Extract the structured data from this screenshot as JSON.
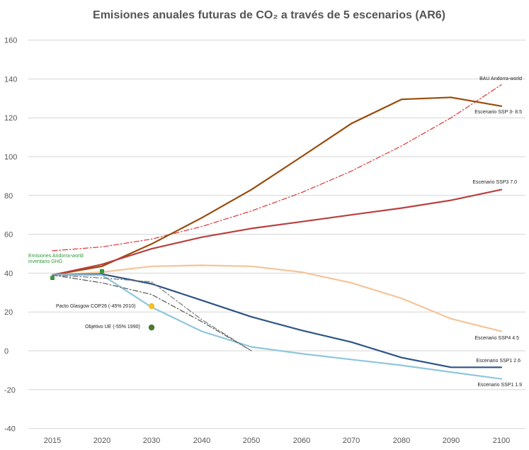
{
  "chart_data": {
    "type": "line",
    "title": "Emisiones anuales futuras de CO₂ a través de 5 escenarios (AR6)",
    "xlabel": "",
    "ylabel": "",
    "x": [
      2015,
      2020,
      2030,
      2040,
      2050,
      2060,
      2070,
      2080,
      2090,
      2100
    ],
    "xlim": [
      2015,
      2100
    ],
    "ylim": [
      -40,
      160
    ],
    "yticks": [
      -40,
      -20,
      0,
      20,
      40,
      60,
      80,
      100,
      120,
      140,
      160
    ],
    "grid": true,
    "series": [
      {
        "name": "BAU Andorra-world",
        "color": "#e03030",
        "style": "dashdot",
        "points": [
          [
            2015,
            51.5
          ],
          [
            2020,
            53.5
          ],
          [
            2030,
            57.5
          ],
          [
            2040,
            64
          ],
          [
            2050,
            72
          ],
          [
            2060,
            81.5
          ],
          [
            2070,
            92.5
          ],
          [
            2080,
            105.5
          ],
          [
            2090,
            120
          ],
          [
            2100,
            137
          ]
        ]
      },
      {
        "name": "Escenario SSP 3- 8.5",
        "color": "#9a4a0a",
        "style": "solid",
        "points": [
          [
            2015,
            39
          ],
          [
            2020,
            43.5
          ],
          [
            2030,
            55
          ],
          [
            2040,
            68.5
          ],
          [
            2050,
            83
          ],
          [
            2060,
            100
          ],
          [
            2070,
            117
          ],
          [
            2080,
            129.5
          ],
          [
            2090,
            130.5
          ],
          [
            2100,
            126
          ]
        ]
      },
      {
        "name": "Escenario SSP3 7.0",
        "color": "#b94040",
        "style": "solid",
        "points": [
          [
            2015,
            39
          ],
          [
            2020,
            44.5
          ],
          [
            2030,
            52.5
          ],
          [
            2040,
            58.5
          ],
          [
            2050,
            63
          ],
          [
            2060,
            66.5
          ],
          [
            2070,
            70
          ],
          [
            2080,
            73.5
          ],
          [
            2090,
            77.5
          ],
          [
            2100,
            83
          ]
        ]
      },
      {
        "name": "Escenario SSP4 4.5",
        "color": "#f5c498",
        "style": "solid",
        "points": [
          [
            2015,
            39
          ],
          [
            2020,
            40.5
          ],
          [
            2030,
            43.5
          ],
          [
            2040,
            44
          ],
          [
            2050,
            43.5
          ],
          [
            2060,
            40.5
          ],
          [
            2070,
            35
          ],
          [
            2080,
            27
          ],
          [
            2090,
            16.5
          ],
          [
            2100,
            10
          ]
        ]
      },
      {
        "name": "Escenario SSP1 2.6",
        "color": "#2e5485",
        "style": "solid",
        "points": [
          [
            2015,
            39
          ],
          [
            2020,
            39.5
          ],
          [
            2030,
            34.5
          ],
          [
            2040,
            26
          ],
          [
            2050,
            17.5
          ],
          [
            2060,
            10.5
          ],
          [
            2070,
            4.5
          ],
          [
            2080,
            -3.5
          ],
          [
            2090,
            -8.5
          ],
          [
            2100,
            -8.5
          ]
        ]
      },
      {
        "name": "Escenario SSP1 1.9",
        "color": "#8ec7dc",
        "style": "solid",
        "points": [
          [
            2015,
            39
          ],
          [
            2020,
            39
          ],
          [
            2030,
            22.5
          ],
          [
            2040,
            10
          ],
          [
            2050,
            2
          ],
          [
            2060,
            -1.5
          ],
          [
            2070,
            -4.5
          ],
          [
            2080,
            -7.5
          ],
          [
            2090,
            -11
          ],
          [
            2100,
            -14.5
          ]
        ]
      },
      {
        "name": "",
        "color": "#555555",
        "style": "dashdot",
        "points": [
          [
            2015,
            39
          ],
          [
            2020,
            35
          ],
          [
            2030,
            29
          ],
          [
            2040,
            15
          ],
          [
            2050,
            0
          ]
        ]
      },
      {
        "name": "",
        "color": "#777777",
        "style": "dashdot",
        "points": [
          [
            2015,
            39
          ],
          [
            2020,
            37.5
          ],
          [
            2030,
            35.5
          ],
          [
            2040,
            16
          ],
          [
            2050,
            0
          ]
        ]
      }
    ],
    "markers": [
      {
        "name": "Emisiones Andorra-world inventario GHG",
        "color": "#3a9a3a",
        "shape": "square",
        "points": [
          [
            2015,
            37.5
          ],
          [
            2020,
            41
          ]
        ]
      },
      {
        "name": "Pacto Glasgow COP26 (-45% 2010)",
        "color": "#f5c023",
        "shape": "circle",
        "points": [
          [
            2030,
            23
          ]
        ]
      },
      {
        "name": "Objetivo UE (-55% 1990)",
        "color": "#4a7a2e",
        "shape": "circle",
        "points": [
          [
            2030,
            12
          ]
        ]
      }
    ]
  }
}
